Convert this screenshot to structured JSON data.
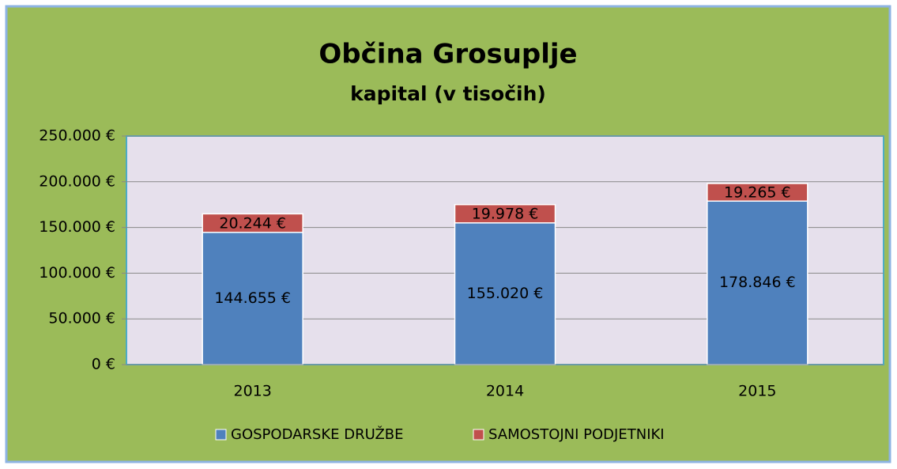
{
  "chart_data": {
    "type": "stacked_bar",
    "title": "Občina Grosuplje",
    "subtitle": "kapital (v tisočih)",
    "categories": [
      "2013",
      "2014",
      "2015"
    ],
    "series": [
      {
        "name": "GOSPODARSKE DRUŽBE",
        "color": "#4f81bd",
        "values": [
          144655,
          155020,
          178846
        ],
        "value_labels": [
          "144.655 €",
          "155.020 €",
          "178.846 €"
        ]
      },
      {
        "name": "SAMOSTOJNI PODJETNIKI",
        "color": "#c0504d",
        "values": [
          20244,
          19978,
          19265
        ],
        "value_labels": [
          "20.244 €",
          "19.978 €",
          "19.265 €"
        ]
      }
    ],
    "ylim": [
      0,
      250000
    ],
    "yticks": [
      {
        "value": 0,
        "label": "0 €"
      },
      {
        "value": 50000,
        "label": "50.000 €"
      },
      {
        "value": 100000,
        "label": "100.000 €"
      },
      {
        "value": 150000,
        "label": "150.000 €"
      },
      {
        "value": 200000,
        "label": "200.000 €"
      },
      {
        "value": 250000,
        "label": "250.000 €"
      }
    ],
    "grid": true,
    "legend": "bottom"
  }
}
